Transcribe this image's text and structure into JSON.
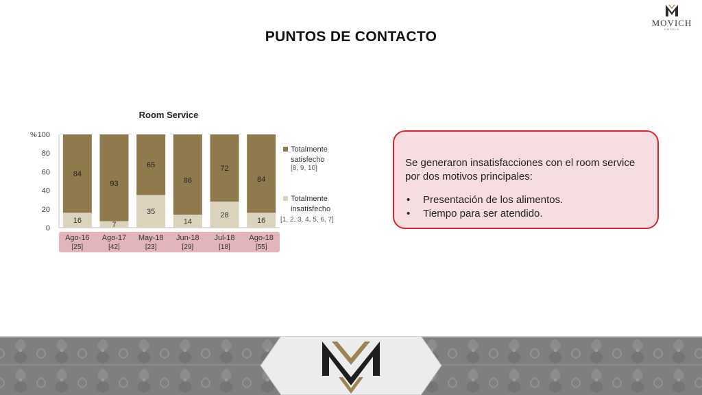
{
  "header": {
    "title": "PUNTOS DE CONTACTO",
    "logo_text": "MOVICH",
    "logo_subtext": "HOTELS"
  },
  "callout": {
    "text": "Se generaron insatisfacciones con el room service por dos motivos principales:",
    "items": [
      "Presentación de los alimentos.",
      "Tiempo para ser atendido."
    ]
  },
  "colors": {
    "satisfied": "#8f7a4e",
    "dissatisfied": "#dcd3bd",
    "category_band": "#e2b5ba",
    "callout_border": "#d8262f",
    "callout_fill": "#f5dde0",
    "footer_gray": "#7f7f7f"
  },
  "chart_data": {
    "type": "bar",
    "stacked": true,
    "title": "Room Service",
    "y_unit_label": "%",
    "ylim": [
      0,
      100
    ],
    "yticks": [
      "0",
      "20",
      "40",
      "60",
      "80",
      "100"
    ],
    "categories": [
      "Ago-16",
      "Ago-17",
      "May-18",
      "Jun-18",
      "Jul-18",
      "Ago-18"
    ],
    "category_counts": [
      "[25]",
      "[42]",
      "[23]",
      "[29]",
      "[18]",
      "[55]"
    ],
    "series": [
      {
        "name": "Totalmente insatisfecho",
        "note": "[1, 2, 3, 4, 5, 6, 7]",
        "values": [
          16,
          7,
          35,
          14,
          28,
          16
        ]
      },
      {
        "name": "Totalmente satisfecho",
        "note": "[8, 9, 10]",
        "values": [
          84,
          93,
          65,
          86,
          72,
          84
        ]
      }
    ],
    "legend_position": "right"
  }
}
